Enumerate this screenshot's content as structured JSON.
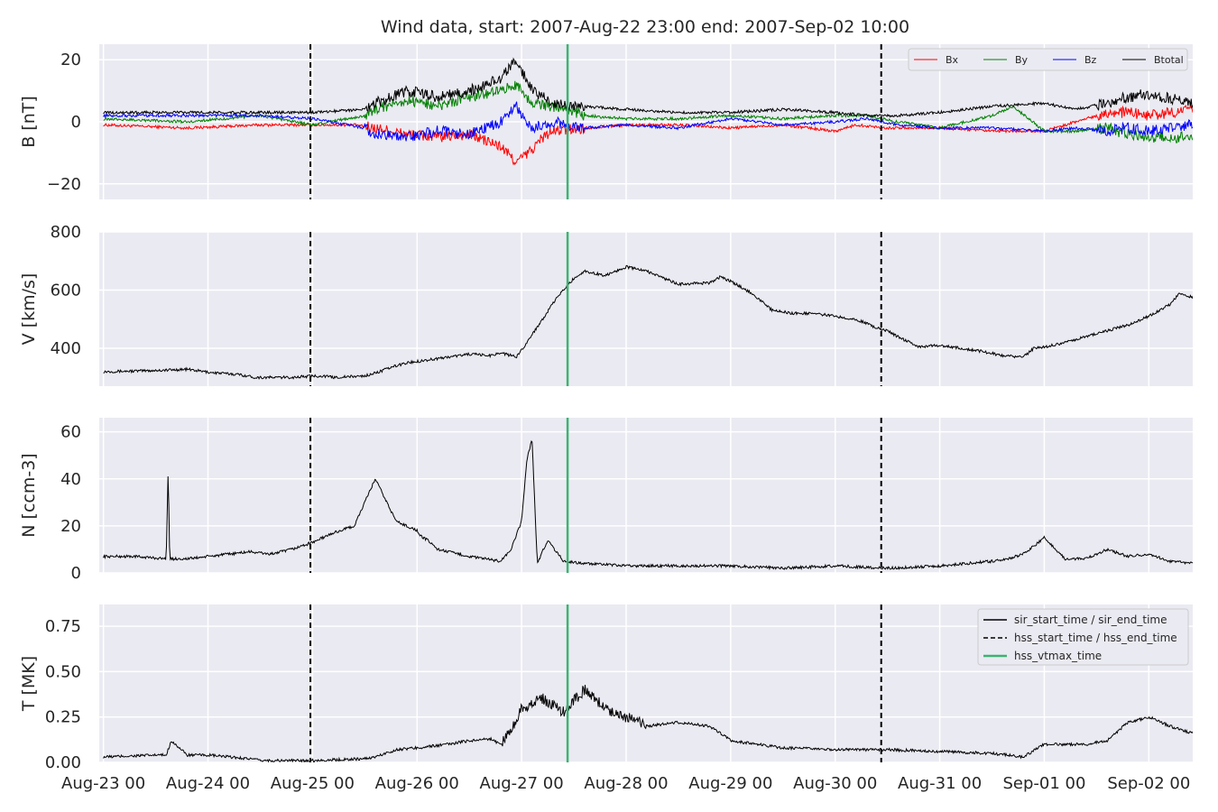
{
  "title": "Wind data, start: 2007-Aug-22 23:00  end: 2007-Sep-02 10:00",
  "x_ticks": [
    "Aug-23 00",
    "Aug-24 00",
    "Aug-25 00",
    "Aug-26 00",
    "Aug-27 00",
    "Aug-28 00",
    "Aug-29 00",
    "Aug-30 00",
    "Aug-31 00",
    "Sep-01 00",
    "Sep-02 00"
  ],
  "colors": {
    "bg": "#eaeaf2",
    "grid": "#ffffff",
    "Bx": "#ff0000",
    "By": "#008000",
    "Bz": "#0000ff",
    "Btotal": "#000000",
    "vtmax": "#3cb371",
    "text": "#262626"
  },
  "chart_data": [
    {
      "type": "line",
      "ylabel": "B [nT]",
      "ylim": [
        -25,
        25
      ],
      "yticks": [
        -20,
        0,
        20
      ],
      "xlim_days": [
        -0.04,
        10.42
      ],
      "grid": true,
      "legend": {
        "placement": "upper right",
        "columns": 4,
        "entries": [
          "Bx",
          "By",
          "Bz",
          "Btotal"
        ]
      },
      "series": [
        {
          "name": "Bx",
          "color": "#ff0000",
          "x": [
            0,
            0.8,
            1.5,
            2.4,
            2.6,
            2.9,
            3.2,
            3.5,
            3.8,
            3.95,
            4.1,
            4.2,
            4.3,
            4.6,
            5,
            5.5,
            6,
            6.5,
            7,
            7.2,
            7.5,
            8,
            8.5,
            9,
            9.3,
            9.6,
            9.8,
            10,
            10.42
          ],
          "y": [
            -1,
            -2,
            -1,
            -1,
            -2,
            -4,
            -5,
            -4,
            -8,
            -13,
            -9,
            -5,
            -3,
            -2,
            -1,
            -1,
            -2,
            -1,
            -3,
            -1,
            -2,
            -2,
            -3,
            -3,
            0,
            3,
            3,
            2,
            4
          ]
        },
        {
          "name": "By",
          "color": "#008000",
          "x": [
            0,
            0.8,
            1.5,
            2.0,
            2.5,
            2.6,
            2.9,
            3.2,
            3.5,
            3.8,
            3.95,
            4.1,
            4.3,
            4.6,
            5,
            5.5,
            6,
            6.5,
            7,
            7.3,
            7.6,
            8,
            8.5,
            8.7,
            9,
            9.3,
            9.6,
            9.8,
            10,
            10.42
          ],
          "y": [
            1,
            0,
            2,
            -1,
            2,
            4,
            7,
            5,
            8,
            10,
            12,
            6,
            5,
            2,
            1,
            1,
            2,
            1,
            2,
            2,
            0,
            -2,
            2,
            5,
            -3,
            -3,
            -2,
            -4,
            -5,
            -5
          ]
        },
        {
          "name": "Bz",
          "color": "#0000ff",
          "x": [
            0,
            0.8,
            1.5,
            2.0,
            2.5,
            2.6,
            2.9,
            3.2,
            3.5,
            3.8,
            3.95,
            4.1,
            4.3,
            4.6,
            5,
            5.5,
            6,
            6.5,
            7,
            7.3,
            7.6,
            8,
            8.5,
            9,
            9.3,
            9.6,
            9.8,
            10,
            10.42
          ],
          "y": [
            2,
            2,
            2,
            1,
            -2,
            -4,
            -5,
            -3,
            -4,
            0,
            5,
            -2,
            0,
            -2,
            -1,
            -2,
            1,
            -1,
            0,
            1,
            -1,
            -2,
            -2,
            -3,
            -2,
            -3,
            -2,
            -3,
            -1
          ]
        },
        {
          "name": "Btotal",
          "color": "#000000",
          "x": [
            0,
            0.8,
            1.5,
            2.0,
            2.5,
            2.6,
            2.9,
            3.2,
            3.5,
            3.8,
            3.95,
            4.1,
            4.3,
            4.6,
            5,
            5.5,
            6,
            6.5,
            7,
            7.3,
            7.6,
            8,
            8.5,
            9,
            9.3,
            9.6,
            9.8,
            10,
            10.42
          ],
          "y": [
            3,
            3,
            3,
            3,
            4,
            6,
            10,
            8,
            10,
            14,
            20,
            10,
            6,
            5,
            4,
            3,
            3,
            4,
            3,
            2,
            2,
            3,
            5,
            6,
            4,
            6,
            8,
            9,
            6
          ]
        }
      ],
      "markers": {
        "hss_start": 1.98,
        "hss_vtmax": 4.44,
        "hss_end": 7.44
      }
    },
    {
      "type": "line",
      "ylabel": "V [km/s]",
      "ylim": [
        270,
        800
      ],
      "yticks": [
        400,
        600,
        800
      ],
      "xlim_days": [
        -0.04,
        10.42
      ],
      "grid": true,
      "series": [
        {
          "name": "V",
          "color": "#000000",
          "x": [
            0,
            0.3,
            0.6,
            0.8,
            1.0,
            1.1,
            1.3,
            1.45,
            1.55,
            1.8,
            2.0,
            2.1,
            2.2,
            2.5,
            2.6,
            2.8,
            2.9,
            3.0,
            3.2,
            3.4,
            3.5,
            3.7,
            3.8,
            3.95,
            4.05,
            4.2,
            4.35,
            4.5,
            4.6,
            4.8,
            5.0,
            5.2,
            5.5,
            5.8,
            5.9,
            6.0,
            6.2,
            6.4,
            6.6,
            6.8,
            7.0,
            7.2,
            7.4,
            7.5,
            7.6,
            7.8,
            8.0,
            8.2,
            8.4,
            8.6,
            8.8,
            8.9,
            9.0,
            9.2,
            9.4,
            9.6,
            9.8,
            10.0,
            10.2,
            10.3,
            10.42
          ],
          "y": [
            320,
            322,
            325,
            328,
            318,
            315,
            310,
            300,
            300,
            300,
            305,
            305,
            300,
            305,
            315,
            340,
            350,
            355,
            365,
            375,
            380,
            375,
            385,
            370,
            420,
            500,
            580,
            640,
            665,
            650,
            680,
            665,
            620,
            625,
            645,
            630,
            590,
            530,
            520,
            520,
            510,
            500,
            470,
            460,
            440,
            405,
            410,
            400,
            390,
            375,
            370,
            400,
            405,
            420,
            440,
            460,
            480,
            510,
            550,
            590,
            575
          ]
        }
      ],
      "markers": {
        "hss_start": 1.98,
        "hss_vtmax": 4.44,
        "hss_end": 7.44
      }
    },
    {
      "type": "line",
      "ylabel": "N [ccm-3]",
      "ylim": [
        0,
        66
      ],
      "yticks": [
        0,
        20,
        40,
        60
      ],
      "xlim_days": [
        -0.04,
        10.42
      ],
      "grid": true,
      "series": [
        {
          "name": "N",
          "color": "#000000",
          "x": [
            0,
            0.3,
            0.6,
            0.62,
            0.63,
            0.64,
            0.8,
            1.0,
            1.4,
            1.6,
            1.8,
            2.0,
            2.2,
            2.4,
            2.6,
            2.8,
            3.0,
            3.05,
            3.1,
            3.2,
            3.5,
            3.8,
            3.9,
            4.0,
            4.05,
            4.1,
            4.15,
            4.25,
            4.4,
            4.6,
            5.0,
            5.5,
            6.0,
            6.5,
            7.0,
            7.5,
            8.0,
            8.5,
            8.65,
            8.8,
            9.0,
            9.2,
            9.4,
            9.6,
            9.8,
            10.0,
            10.2,
            10.42
          ],
          "y": [
            7,
            7,
            6,
            46,
            12,
            6,
            6,
            7,
            9,
            8,
            10,
            13,
            17,
            20,
            40,
            22,
            18,
            15,
            14,
            10,
            7,
            5,
            10,
            22,
            48,
            57,
            4,
            14,
            5,
            4,
            3,
            3,
            3,
            2,
            3,
            2,
            3,
            5,
            6,
            8,
            15,
            6,
            6,
            10,
            7,
            8,
            5,
            4
          ]
        }
      ],
      "markers": {
        "hss_start": 1.98,
        "hss_vtmax": 4.44,
        "hss_end": 7.44
      }
    },
    {
      "type": "line",
      "ylabel": "T [MK]",
      "ylim": [
        0,
        0.87
      ],
      "yticks": [
        0.0,
        0.25,
        0.5,
        0.75
      ],
      "yticklabels": [
        "0.00",
        "0.25",
        "0.50",
        "0.75"
      ],
      "xlim_days": [
        -0.04,
        10.42
      ],
      "grid": true,
      "legend": {
        "placement": "upper right",
        "entries": [
          {
            "label": "sir_start_time / sir_end_time",
            "style": "solid",
            "color": "#000000"
          },
          {
            "label": "hss_start_time / hss_end_time",
            "style": "dashed",
            "color": "#000000"
          },
          {
            "label": "hss_vtmax_time",
            "style": "solid",
            "color": "#3cb371"
          }
        ]
      },
      "series": [
        {
          "name": "T",
          "color": "#000000",
          "x": [
            0,
            0.5,
            0.6,
            0.65,
            0.8,
            1.0,
            1.4,
            1.5,
            2.0,
            2.5,
            2.6,
            2.8,
            3.0,
            3.3,
            3.5,
            3.7,
            3.8,
            3.9,
            4.0,
            4.2,
            4.4,
            4.6,
            4.8,
            5.0,
            5.2,
            5.5,
            5.8,
            6.0,
            6.5,
            7.0,
            7.5,
            8.0,
            8.5,
            8.8,
            9.0,
            9.2,
            9.4,
            9.6,
            9.8,
            10.0,
            10.2,
            10.42
          ],
          "y": [
            0.03,
            0.04,
            0.04,
            0.12,
            0.04,
            0.04,
            0.02,
            0.01,
            0.01,
            0.02,
            0.03,
            0.07,
            0.08,
            0.1,
            0.12,
            0.13,
            0.1,
            0.18,
            0.3,
            0.35,
            0.28,
            0.4,
            0.3,
            0.25,
            0.2,
            0.22,
            0.2,
            0.12,
            0.08,
            0.07,
            0.07,
            0.06,
            0.05,
            0.03,
            0.1,
            0.1,
            0.1,
            0.12,
            0.22,
            0.25,
            0.2,
            0.16
          ]
        }
      ],
      "markers": {
        "hss_start": 1.98,
        "hss_vtmax": 4.44,
        "hss_end": 7.44
      }
    }
  ]
}
